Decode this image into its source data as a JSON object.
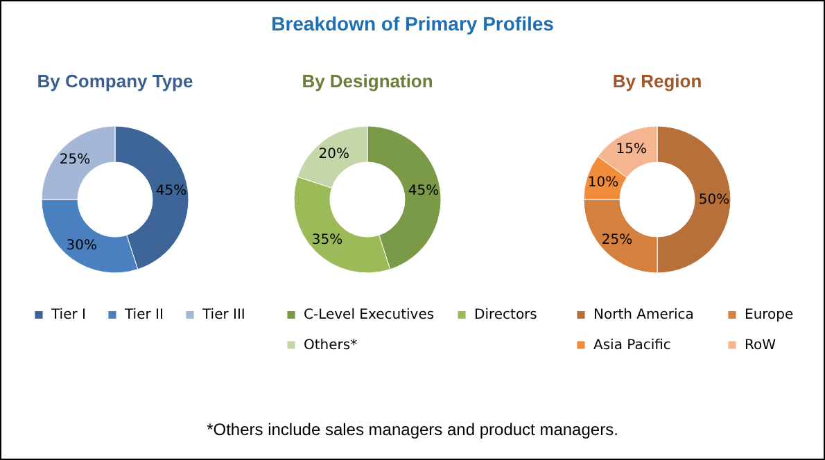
{
  "chart_data": [
    {
      "type": "other",
      "title": "Breakdown of Primary Profiles",
      "annotations": [
        "*Others include sales managers and product managers."
      ]
    },
    {
      "type": "donut",
      "title": "By Company Type",
      "categories": [
        "Tier I",
        "Tier II",
        "Tier III"
      ],
      "values": [
        45,
        30,
        25
      ],
      "colors": [
        "#3d6598",
        "#4a7fc0",
        "#a5b7d6"
      ],
      "value_labels": [
        "45%",
        "30%",
        "25%"
      ],
      "legend": "bottom"
    },
    {
      "type": "donut",
      "title": "By Designation",
      "categories": [
        "C-Level Executives",
        "Directors",
        "Others*"
      ],
      "values": [
        45,
        35,
        20
      ],
      "colors": [
        "#7a9a48",
        "#9bbb59",
        "#c5d6a8"
      ],
      "value_labels": [
        "45%",
        "35%",
        "20%"
      ],
      "legend": "bottom"
    },
    {
      "type": "donut",
      "title": "By Region",
      "categories": [
        "North America",
        "Europe",
        "Asia Pacific",
        "RoW"
      ],
      "values": [
        50,
        25,
        10,
        15
      ],
      "colors": [
        "#b8703a",
        "#d4813f",
        "#f08c3a",
        "#f5b591"
      ],
      "value_labels": [
        "50%",
        "25%",
        "10%",
        "15%"
      ],
      "legend": "bottom"
    }
  ]
}
